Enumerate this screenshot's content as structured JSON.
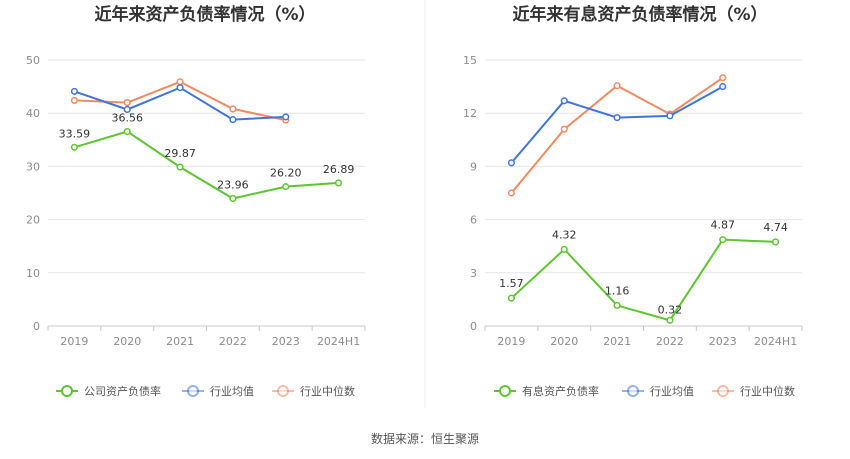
{
  "source_label": "数据来源：恒生聚源",
  "chart_data": [
    {
      "type": "line",
      "title": "近年来资产负债率情况（%）",
      "categories": [
        "2019",
        "2020",
        "2021",
        "2022",
        "2023",
        "2024H1"
      ],
      "ylim": [
        0,
        50
      ],
      "yticks": [
        0,
        10,
        20,
        30,
        40,
        50
      ],
      "grid": true,
      "legend_position": "bottom",
      "series": [
        {
          "name": "公司资产负债率",
          "color": "#5cc52f",
          "show_labels": true,
          "values": [
            33.59,
            36.56,
            29.87,
            23.96,
            26.2,
            26.89
          ],
          "labels": [
            "33.59",
            "36.56",
            "29.87",
            "23.96",
            "26.20",
            "26.89"
          ]
        },
        {
          "name": "行业均值",
          "color": "#3f74d9",
          "show_labels": false,
          "values": [
            44.1,
            40.7,
            44.8,
            38.8,
            39.3,
            null
          ]
        },
        {
          "name": "行业中位数",
          "color": "#f08a60",
          "show_labels": false,
          "values": [
            42.4,
            42.0,
            45.9,
            40.8,
            38.7,
            null
          ]
        }
      ]
    },
    {
      "type": "line",
      "title": "近年来有息资产负债率情况（%）",
      "categories": [
        "2019",
        "2020",
        "2021",
        "2022",
        "2023",
        "2024H1"
      ],
      "ylim": [
        0,
        15
      ],
      "yticks": [
        0,
        3,
        6,
        9,
        12,
        15
      ],
      "grid": true,
      "legend_position": "bottom",
      "series": [
        {
          "name": "有息资产负债率",
          "color": "#5cc52f",
          "show_labels": true,
          "values": [
            1.57,
            4.32,
            1.16,
            0.32,
            4.87,
            4.74
          ],
          "labels": [
            "1.57",
            "4.32",
            "1.16",
            "0.32",
            "4.87",
            "4.74"
          ]
        },
        {
          "name": "行业均值",
          "color": "#3f74d9",
          "show_labels": false,
          "values": [
            9.2,
            12.7,
            11.75,
            11.85,
            13.5,
            null
          ]
        },
        {
          "name": "行业中位数",
          "color": "#f08a60",
          "show_labels": false,
          "values": [
            7.5,
            11.1,
            13.55,
            11.95,
            14.0,
            null
          ]
        }
      ]
    }
  ]
}
